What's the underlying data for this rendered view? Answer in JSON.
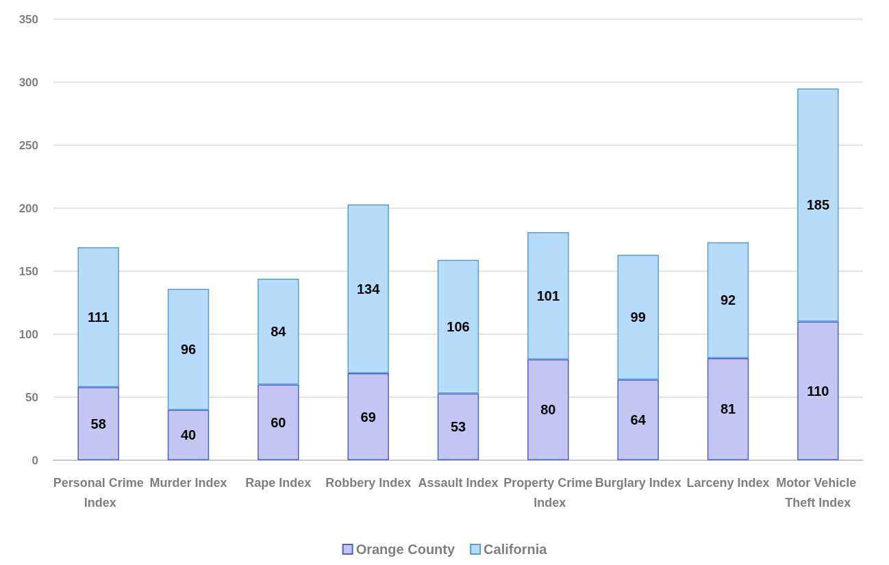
{
  "chart_data": {
    "type": "bar",
    "stacked": true,
    "categories": [
      "Personal Crime Index",
      "Murder Index",
      "Rape Index",
      "Robbery Index",
      "Assault Index",
      "Property Crime Index",
      "Burglary Index",
      "Larceny Index",
      "Motor Vehicle Theft Index"
    ],
    "series": [
      {
        "name": "Orange County",
        "color": "#c3c6f3",
        "values": [
          58,
          40,
          60,
          69,
          53,
          80,
          64,
          81,
          110
        ]
      },
      {
        "name": "California",
        "color": "#b5dcfb",
        "values": [
          111,
          96,
          84,
          134,
          106,
          101,
          99,
          92,
          185
        ]
      }
    ],
    "ylim": [
      0,
      350
    ],
    "yticks": [
      0,
      50,
      100,
      150,
      200,
      250,
      300,
      350
    ],
    "grid": "y",
    "legend": "bottom",
    "data_labels": true
  }
}
